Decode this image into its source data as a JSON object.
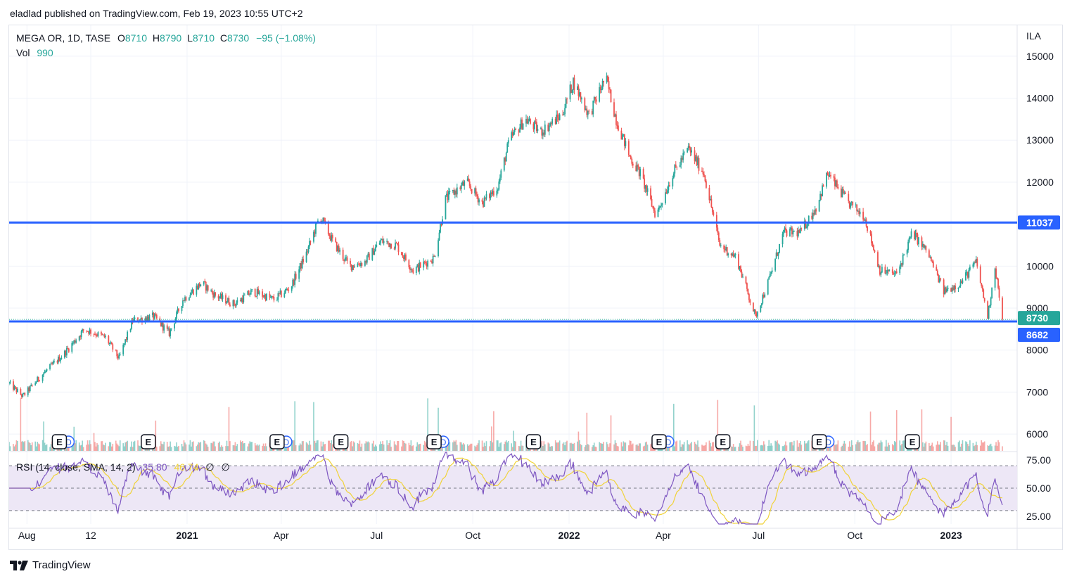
{
  "header": {
    "publish_line": "eladlad published on TradingView.com, Feb 19, 2023 10:55 UTC+2"
  },
  "legend": {
    "symbol": "MEGA OR, 1D, TASE",
    "o_label": "O",
    "o_value": "8710",
    "h_label": "H",
    "h_value": "8790",
    "l_label": "L",
    "l_value": "8710",
    "c_label": "C",
    "c_value": "8730",
    "change": "−95 (−1.08%)",
    "vol_label": "Vol",
    "vol_value": "990",
    "rsi_label": "RSI (14, close, SMA, 14, 2)",
    "rsi_value": "35.80",
    "rsi_sma_value": "46.74",
    "rsi_extra1": "∅",
    "rsi_extra2": "∅"
  },
  "footer": {
    "brand": "TradingView"
  },
  "colors": {
    "up": "#26a69a",
    "down": "#ef5350",
    "level": "#2962ff",
    "rsi": "#7e57c2",
    "rsi_sma": "#f0d33a",
    "rsi_band": "#ede7f6"
  },
  "icons": {
    "earnings": "earnings-marker-icon",
    "dividend": "dividend-marker-icon",
    "brand": "tradingview-logo-icon"
  },
  "chart_data": {
    "type": "candlestick",
    "currency": "ILA",
    "price_axis_ticks": [
      "15000",
      "14000",
      "13000",
      "12000",
      "11000",
      "10000",
      "9000",
      "8000",
      "7000",
      "6000"
    ],
    "ylim": [
      5600,
      15500
    ],
    "time_axis_labels": [
      "Aug",
      "12",
      "2021",
      "Apr",
      "Jul",
      "Oct",
      "2022",
      "Apr",
      "Jul",
      "Oct",
      "2023"
    ],
    "bold_time_labels": [
      "2021",
      "2022",
      "2023"
    ],
    "horizontal_levels": [
      {
        "value": 11037,
        "label": "11037"
      },
      {
        "value": 8682,
        "label": "8682"
      }
    ],
    "last_close": {
      "value": 8730,
      "label": "8730"
    },
    "price_path": [
      {
        "date": "2020-07-15",
        "close": 7200
      },
      {
        "date": "2020-07-28",
        "close": 6900
      },
      {
        "date": "2020-08-15",
        "close": 7400
      },
      {
        "date": "2020-09-05",
        "close": 7900
      },
      {
        "date": "2020-09-25",
        "close": 8500
      },
      {
        "date": "2020-10-15",
        "close": 8300
      },
      {
        "date": "2020-10-28",
        "close": 7800
      },
      {
        "date": "2020-11-10",
        "close": 8700
      },
      {
        "date": "2020-11-30",
        "close": 8800
      },
      {
        "date": "2020-12-15",
        "close": 8400
      },
      {
        "date": "2020-12-28",
        "close": 9200
      },
      {
        "date": "2021-01-15",
        "close": 9600
      },
      {
        "date": "2021-01-28",
        "close": 9300
      },
      {
        "date": "2021-02-15",
        "close": 9100
      },
      {
        "date": "2021-03-05",
        "close": 9400
      },
      {
        "date": "2021-03-25",
        "close": 9200
      },
      {
        "date": "2021-04-10",
        "close": 9500
      },
      {
        "date": "2021-04-25",
        "close": 10300
      },
      {
        "date": "2021-05-08",
        "close": 11200
      },
      {
        "date": "2021-05-20",
        "close": 10600
      },
      {
        "date": "2021-06-05",
        "close": 10000
      },
      {
        "date": "2021-06-20",
        "close": 10100
      },
      {
        "date": "2021-07-05",
        "close": 10600
      },
      {
        "date": "2021-07-20",
        "close": 10500
      },
      {
        "date": "2021-08-05",
        "close": 9900
      },
      {
        "date": "2021-08-25",
        "close": 10200
      },
      {
        "date": "2021-09-05",
        "close": 11600
      },
      {
        "date": "2021-09-25",
        "close": 12000
      },
      {
        "date": "2021-10-10",
        "close": 11500
      },
      {
        "date": "2021-10-25",
        "close": 11900
      },
      {
        "date": "2021-11-05",
        "close": 13000
      },
      {
        "date": "2021-11-20",
        "close": 13500
      },
      {
        "date": "2021-12-05",
        "close": 13200
      },
      {
        "date": "2021-12-25",
        "close": 13600
      },
      {
        "date": "2022-01-05",
        "close": 14400
      },
      {
        "date": "2022-01-20",
        "close": 13600
      },
      {
        "date": "2022-02-05",
        "close": 14500
      },
      {
        "date": "2022-02-15",
        "close": 13500
      },
      {
        "date": "2022-02-28",
        "close": 12600
      },
      {
        "date": "2022-03-10",
        "close": 12200
      },
      {
        "date": "2022-03-25",
        "close": 11200
      },
      {
        "date": "2022-04-10",
        "close": 12200
      },
      {
        "date": "2022-04-25",
        "close": 12800
      },
      {
        "date": "2022-05-10",
        "close": 12200
      },
      {
        "date": "2022-05-25",
        "close": 10500
      },
      {
        "date": "2022-06-10",
        "close": 10200
      },
      {
        "date": "2022-06-28",
        "close": 8800
      },
      {
        "date": "2022-07-10",
        "close": 9600
      },
      {
        "date": "2022-07-25",
        "close": 10800
      },
      {
        "date": "2022-08-10",
        "close": 10800
      },
      {
        "date": "2022-08-25",
        "close": 11400
      },
      {
        "date": "2022-09-05",
        "close": 12200
      },
      {
        "date": "2022-09-25",
        "close": 11500
      },
      {
        "date": "2022-10-10",
        "close": 11200
      },
      {
        "date": "2022-10-25",
        "close": 9900
      },
      {
        "date": "2022-11-10",
        "close": 9800
      },
      {
        "date": "2022-11-25",
        "close": 10800
      },
      {
        "date": "2022-12-10",
        "close": 10300
      },
      {
        "date": "2022-12-25",
        "close": 9400
      },
      {
        "date": "2023-01-10",
        "close": 9600
      },
      {
        "date": "2023-01-25",
        "close": 10100
      },
      {
        "date": "2023-02-05",
        "close": 8800
      },
      {
        "date": "2023-02-12",
        "close": 10000
      },
      {
        "date": "2023-02-19",
        "close": 8730
      }
    ],
    "volume_panel": {
      "label": "Vol",
      "last_value": 990
    },
    "rsi_panel": {
      "label": "RSI (14, close, SMA, 14, 2)",
      "axis_ticks": [
        "75.00",
        "50.00",
        "25.00"
      ],
      "ylim": [
        18,
        82
      ],
      "band": [
        30,
        70
      ],
      "last_rsi": 35.8,
      "last_sma": 46.74
    },
    "event_markers": [
      {
        "type": "E",
        "date": "2020-09-01",
        "with_dividend": true
      },
      {
        "type": "E",
        "date": "2020-11-25",
        "with_dividend": false
      },
      {
        "type": "E",
        "date": "2021-03-28",
        "with_dividend": true
      },
      {
        "type": "E",
        "date": "2021-05-28",
        "with_dividend": false
      },
      {
        "type": "E",
        "date": "2021-08-25",
        "with_dividend": true
      },
      {
        "type": "E",
        "date": "2021-11-28",
        "with_dividend": false
      },
      {
        "type": "E",
        "date": "2022-03-28",
        "with_dividend": true
      },
      {
        "type": "E",
        "date": "2022-05-28",
        "with_dividend": false
      },
      {
        "type": "E",
        "date": "2022-08-28",
        "with_dividend": true
      },
      {
        "type": "E",
        "date": "2022-11-25",
        "with_dividend": false
      }
    ]
  }
}
